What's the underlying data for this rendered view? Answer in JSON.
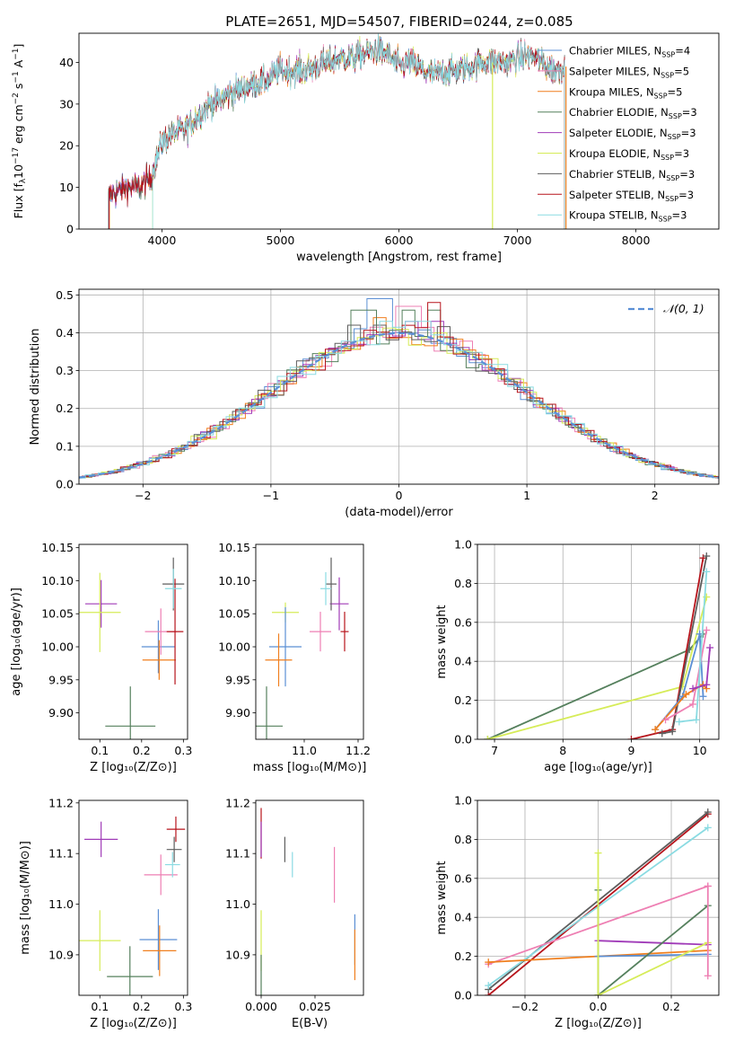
{
  "figure": {
    "title": "PLATE=2651, MJD=54507, FIBERID=0244, z=0.085"
  },
  "palette": {
    "Chabrier MILES": "#5b8fd4",
    "Salpeter MILES": "#ee7fb3",
    "Kroupa MILES": "#f07f1e",
    "Chabrier ELODIE": "#55805d",
    "Salpeter ELODIE": "#a03bb8",
    "Kroupa ELODIE": "#d6ec58",
    "Chabrier STELIB": "#5e5e5e",
    "Salpeter STELIB": "#b7141c",
    "Kroupa STELIB": "#8adbe2",
    "normal_curve": "#5a8fd6"
  },
  "chart_data": [
    {
      "id": "spectrum",
      "type": "line",
      "xlabel": "wavelength [Angstrom, rest frame]",
      "ylabel": "Flux [f_λ10^-17 erg cm^-2 s^-1 A^-1]",
      "xlim": [
        3300,
        8700
      ],
      "ylim": [
        0,
        47
      ],
      "xticks": [
        4000,
        5000,
        6000,
        7000,
        8000
      ],
      "yticks": [
        0,
        10,
        20,
        30,
        40
      ],
      "grid": false,
      "legend_position": "right",
      "legend": [
        {
          "label": "Chabrier MILES, N",
          "sub": "SSP",
          "suffix": "=4"
        },
        {
          "label": "Salpeter MILES, N",
          "sub": "SSP",
          "suffix": "=5"
        },
        {
          "label": "Kroupa MILES, N",
          "sub": "SSP",
          "suffix": "=5"
        },
        {
          "label": "Chabrier ELODIE, N",
          "sub": "SSP",
          "suffix": "=3"
        },
        {
          "label": "Salpeter ELODIE, N",
          "sub": "SSP",
          "suffix": "=3"
        },
        {
          "label": "Kroupa ELODIE, N",
          "sub": "SSP",
          "suffix": "=3"
        },
        {
          "label": "Chabrier STELIB, N",
          "sub": "SSP",
          "suffix": "=3"
        },
        {
          "label": "Salpeter STELIB, N",
          "sub": "SSP",
          "suffix": "=3"
        },
        {
          "label": "Kroupa STELIB, N",
          "sub": "SSP",
          "suffix": "=3"
        }
      ],
      "continuum_x": [
        3550,
        3700,
        3800,
        3900,
        4000,
        4100,
        4200,
        4300,
        4400,
        4500,
        4600,
        4700,
        4800,
        4900,
        5000,
        5100,
        5200,
        5300,
        5400,
        5500,
        5600,
        5700,
        5800,
        5900,
        6000,
        6100,
        6200,
        6300,
        6400,
        6500,
        6600,
        6700,
        6800,
        6900,
        7000,
        7100,
        7200,
        7300,
        7400
      ],
      "continuum_y": [
        8,
        10,
        10,
        12,
        21,
        23,
        24,
        27,
        30,
        31,
        33,
        34,
        35,
        36,
        38,
        38,
        38,
        39,
        40,
        41,
        41,
        42,
        43,
        42,
        39,
        40,
        38,
        37,
        38,
        38,
        39,
        40,
        40,
        40,
        41,
        42,
        40,
        38,
        39
      ]
    },
    {
      "id": "residuals",
      "type": "step",
      "xlabel": "(data-model)/error",
      "ylabel": "Normed distribution",
      "xlim": [
        -2.5,
        2.5
      ],
      "ylim": [
        0,
        0.515
      ],
      "xticks": [
        -2,
        -1,
        0,
        1,
        2
      ],
      "yticks": [
        0.0,
        0.1,
        0.2,
        0.3,
        0.4,
        0.5
      ],
      "grid": true,
      "legend_position": "top-right",
      "curve_label": "𝒩(0, 1)",
      "bin_width": 0.1,
      "peaks": [
        0.49,
        0.47,
        0.44,
        0.46,
        0.43,
        0.45,
        0.42,
        0.48,
        0.43
      ]
    },
    {
      "id": "z_age",
      "type": "errorbar",
      "xlabel": "Z [log₁₀(Z/Z⊙)]",
      "ylabel": "age  [log₁₀(age/yr)]",
      "xlim": [
        0.05,
        0.31
      ],
      "ylim": [
        9.86,
        10.155
      ],
      "xticks": [
        0.1,
        0.2,
        0.3
      ],
      "yticks": [
        9.9,
        9.95,
        10.0,
        10.05,
        10.1,
        10.15
      ],
      "points": [
        {
          "series": "Salpeter ELODIE",
          "x": 0.103,
          "xerr": 0.038,
          "y": 10.065,
          "yerr": 0.036
        },
        {
          "series": "Kroupa ELODIE",
          "x": 0.1,
          "xerr": 0.05,
          "y": 10.052,
          "yerr": 0.06
        },
        {
          "series": "Chabrier ELODIE",
          "x": 0.173,
          "xerr": 0.06,
          "y": 9.88,
          "yerr": 0.06
        },
        {
          "series": "Chabrier MILES",
          "x": 0.24,
          "xerr": 0.04,
          "y": 10.0,
          "yerr": 0.04
        },
        {
          "series": "Kroupa MILES",
          "x": 0.242,
          "xerr": 0.04,
          "y": 9.98,
          "yerr": 0.03
        },
        {
          "series": "Salpeter MILES",
          "x": 0.246,
          "xerr": 0.038,
          "y": 10.023,
          "yerr": 0.035
        },
        {
          "series": "Chabrier STELIB",
          "x": 0.276,
          "xerr": 0.026,
          "y": 10.095,
          "yerr": 0.04
        },
        {
          "series": "Salpeter STELIB",
          "x": 0.28,
          "xerr": 0.02,
          "y": 10.023,
          "yerr": 0.08
        },
        {
          "series": "Kroupa STELIB",
          "x": 0.276,
          "xerr": 0.02,
          "y": 10.088,
          "yerr": 0.03
        }
      ]
    },
    {
      "id": "mass_age",
      "type": "errorbar",
      "xlabel": "mass [log₁₀(M/M⊙)]",
      "ylabel": "",
      "xlim": [
        10.82,
        11.22
      ],
      "ylim": [
        9.86,
        10.155
      ],
      "xticks": [
        11.0,
        11.2
      ],
      "yticks": [
        9.9,
        9.95,
        10.0,
        10.05,
        10.1,
        10.15
      ],
      "points": [
        {
          "series": "Salpeter ELODIE",
          "x": 11.13,
          "xerr": 0.035,
          "y": 10.065,
          "yerr": 0.04
        },
        {
          "series": "Kroupa ELODIE",
          "x": 10.93,
          "xerr": 0.05,
          "y": 10.052,
          "yerr": 0.015
        },
        {
          "series": "Chabrier ELODIE",
          "x": 10.86,
          "xerr": 0.06,
          "y": 9.88,
          "yerr": 0.06
        },
        {
          "series": "Chabrier MILES",
          "x": 10.93,
          "xerr": 0.06,
          "y": 10.0,
          "yerr": 0.06
        },
        {
          "series": "Kroupa MILES",
          "x": 10.905,
          "xerr": 0.05,
          "y": 9.98,
          "yerr": 0.04
        },
        {
          "series": "Salpeter MILES",
          "x": 11.06,
          "xerr": 0.04,
          "y": 10.023,
          "yerr": 0.03
        },
        {
          "series": "Chabrier STELIB",
          "x": 11.1,
          "xerr": 0.02,
          "y": 10.095,
          "yerr": 0.04
        },
        {
          "series": "Salpeter STELIB",
          "x": 11.15,
          "xerr": 0.015,
          "y": 10.023,
          "yerr": 0.03
        },
        {
          "series": "Kroupa STELIB",
          "x": 11.08,
          "xerr": 0.02,
          "y": 10.088,
          "yerr": 0.025
        }
      ]
    },
    {
      "id": "age_weight",
      "type": "line",
      "xlabel": "age  [log₁₀(age/yr)]",
      "ylabel": "mass weight",
      "xlim": [
        6.75,
        10.28
      ],
      "ylim": [
        0,
        1.0
      ],
      "xticks": [
        7,
        8,
        9,
        10
      ],
      "yticks": [
        0.0,
        0.2,
        0.4,
        0.6,
        0.8,
        1.0
      ],
      "grid": true,
      "series": [
        {
          "name": "Chabrier ELODIE",
          "x": [
            6.9,
            9.85,
            10.05
          ],
          "y": [
            0.0,
            0.46,
            0.54
          ]
        },
        {
          "name": "Kroupa ELODIE",
          "x": [
            6.9,
            9.75,
            10.1
          ],
          "y": [
            0.0,
            0.27,
            0.73
          ]
        },
        {
          "name": "Salpeter STELIB",
          "x": [
            9.0,
            9.6,
            10.05
          ],
          "y": [
            0.0,
            0.05,
            0.93
          ]
        },
        {
          "name": "Chabrier STELIB",
          "x": [
            9.45,
            9.6,
            10.1
          ],
          "y": [
            0.03,
            0.04,
            0.94
          ]
        },
        {
          "name": "Chabrier MILES",
          "x": [
            9.35,
            9.75,
            10.0,
            10.05
          ],
          "y": [
            0.05,
            0.22,
            0.54,
            0.22
          ]
        },
        {
          "name": "Kroupa MILES",
          "x": [
            9.35,
            9.8,
            10.05,
            10.1
          ],
          "y": [
            0.05,
            0.23,
            0.28,
            0.26
          ]
        },
        {
          "name": "Salpeter MILES",
          "x": [
            9.5,
            9.9,
            10.1
          ],
          "y": [
            0.1,
            0.18,
            0.56
          ]
        },
        {
          "name": "Kroupa STELIB",
          "x": [
            9.7,
            9.95,
            10.1
          ],
          "y": [
            0.09,
            0.1,
            0.86
          ]
        },
        {
          "name": "Salpeter ELODIE",
          "x": [
            9.9,
            10.1,
            10.15
          ],
          "y": [
            0.26,
            0.28,
            0.47
          ]
        }
      ]
    },
    {
      "id": "z_mass",
      "type": "errorbar",
      "xlabel": "Z [log₁₀(Z/Z⊙)]",
      "ylabel": "mass [log₁₀(M/M⊙)]",
      "xlim": [
        0.05,
        0.31
      ],
      "ylim": [
        10.82,
        11.205
      ],
      "xticks": [
        0.1,
        0.2,
        0.3
      ],
      "yticks": [
        10.9,
        11.0,
        11.1,
        11.2
      ],
      "points": [
        {
          "series": "Salpeter ELODIE",
          "x": 0.103,
          "xerr": 0.04,
          "y": 11.128,
          "yerr": 0.035
        },
        {
          "series": "Kroupa ELODIE",
          "x": 0.1,
          "xerr": 0.05,
          "y": 10.928,
          "yerr": 0.06
        },
        {
          "series": "Chabrier ELODIE",
          "x": 0.172,
          "xerr": 0.055,
          "y": 10.857,
          "yerr": 0.06
        },
        {
          "series": "Chabrier MILES",
          "x": 0.24,
          "xerr": 0.045,
          "y": 10.93,
          "yerr": 0.06
        },
        {
          "series": "Kroupa MILES",
          "x": 0.243,
          "xerr": 0.04,
          "y": 10.908,
          "yerr": 0.05
        },
        {
          "series": "Salpeter MILES",
          "x": 0.246,
          "xerr": 0.04,
          "y": 11.058,
          "yerr": 0.04
        },
        {
          "series": "Chabrier STELIB",
          "x": 0.278,
          "xerr": 0.018,
          "y": 11.108,
          "yerr": 0.025
        },
        {
          "series": "Salpeter STELIB",
          "x": 0.282,
          "xerr": 0.022,
          "y": 11.148,
          "yerr": 0.025
        },
        {
          "series": "Kroupa STELIB",
          "x": 0.274,
          "xerr": 0.018,
          "y": 11.078,
          "yerr": 0.025
        }
      ]
    },
    {
      "id": "ebv_mass",
      "type": "errorbar",
      "xlabel": "E(B-V)",
      "ylabel": "",
      "xlim": [
        -0.0025,
        0.0475
      ],
      "ylim": [
        10.82,
        11.205
      ],
      "xticks": [
        0.0,
        0.025
      ],
      "xticklabels": [
        "0.000",
        "0.025"
      ],
      "yticks": [
        10.9,
        11.0,
        11.1,
        11.2
      ],
      "points": [
        {
          "series": "Salpeter STELIB",
          "x": 0.0,
          "xerr": 0,
          "y": 11.14,
          "yerr": 0.05
        },
        {
          "series": "Salpeter ELODIE",
          "x": 0.0,
          "xerr": 0,
          "y": 11.128,
          "yerr": 0.035
        },
        {
          "series": "Kroupa ELODIE",
          "x": 0.0,
          "xerr": 0,
          "y": 10.928,
          "yerr": 0.06
        },
        {
          "series": "Chabrier ELODIE",
          "x": 0.0,
          "xerr": 0,
          "y": 10.86,
          "yerr": 0.04
        },
        {
          "series": "Chabrier STELIB",
          "x": 0.011,
          "xerr": 0,
          "y": 11.108,
          "yerr": 0.025
        },
        {
          "series": "Kroupa STELIB",
          "x": 0.0145,
          "xerr": 0,
          "y": 11.078,
          "yerr": 0.025
        },
        {
          "series": "Salpeter MILES",
          "x": 0.034,
          "xerr": 0,
          "y": 11.058,
          "yerr": 0.055
        },
        {
          "series": "Chabrier MILES",
          "x": 0.0435,
          "xerr": 0,
          "y": 10.93,
          "yerr": 0.05
        },
        {
          "series": "Kroupa MILES",
          "x": 0.0435,
          "xerr": 0,
          "y": 10.9,
          "yerr": 0.05
        }
      ]
    },
    {
      "id": "z_weight",
      "type": "line",
      "xlabel": "Z [log₁₀(Z/Z⊙)]",
      "ylabel": "mass weight",
      "xlim": [
        -0.33,
        0.33
      ],
      "ylim": [
        0,
        1.0
      ],
      "xticks": [
        -0.2,
        0.0,
        0.2
      ],
      "yticks": [
        0.0,
        0.2,
        0.4,
        0.6,
        0.8,
        1.0
      ],
      "grid": true,
      "series": [
        {
          "name": "Salpeter STELIB",
          "x": [
            -0.3,
            0.3
          ],
          "y": [
            0.0,
            0.93
          ]
        },
        {
          "name": "Chabrier STELIB",
          "x": [
            -0.3,
            0.3
          ],
          "y": [
            0.03,
            0.94
          ]
        },
        {
          "name": "Kroupa STELIB",
          "x": [
            -0.3,
            0.3
          ],
          "y": [
            0.05,
            0.86
          ]
        },
        {
          "name": "Salpeter MILES",
          "x": [
            -0.3,
            0.3
          ],
          "y": [
            0.16,
            0.56
          ]
        },
        {
          "name": "Kroupa MILES",
          "x": [
            -0.3,
            0.3
          ],
          "y": [
            0.17,
            0.23
          ]
        },
        {
          "name": "Salpeter ELODIE",
          "x": [
            0.0,
            0.3
          ],
          "y": [
            0.28,
            0.26
          ]
        },
        {
          "name": "Chabrier MILES",
          "x": [
            0.0,
            0.3
          ],
          "y": [
            0.2,
            0.21
          ]
        },
        {
          "name": "Chabrier ELODIE",
          "x": [
            0.0,
            0.3
          ],
          "y": [
            0.0,
            0.46
          ]
        },
        {
          "name": "Kroupa ELODIE",
          "x": [
            0.0,
            0.3
          ],
          "y": [
            0.0,
            0.27
          ]
        },
        {
          "name": "Chabrier ELODIE",
          "x": [
            0.0,
            0.0
          ],
          "y": [
            0.0,
            0.54
          ]
        },
        {
          "name": "Kroupa ELODIE",
          "x": [
            0.0,
            0.0
          ],
          "y": [
            0.0,
            0.73
          ]
        },
        {
          "name": "Salpeter MILES",
          "x": [
            0.3,
            0.3
          ],
          "y": [
            0.1,
            0.56
          ]
        }
      ]
    }
  ]
}
